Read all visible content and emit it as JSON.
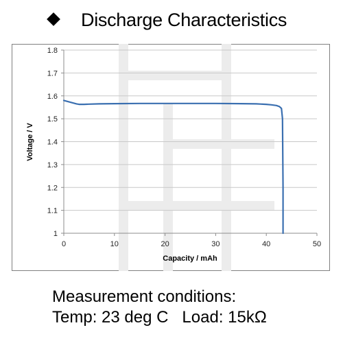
{
  "heading": {
    "bullet_icon": "diamond-bullet-icon",
    "title": "Discharge Characteristics"
  },
  "chart_data": {
    "type": "line",
    "title": "",
    "xlabel": "Capacity  /  mAh",
    "ylabel": "Voltage  /  V",
    "xlim": [
      0,
      50
    ],
    "ylim": [
      1,
      1.8
    ],
    "xticks": [
      0,
      10,
      20,
      30,
      40,
      50
    ],
    "yticks": [
      1,
      1.1,
      1.2,
      1.3,
      1.4,
      1.5,
      1.6,
      1.7,
      1.8
    ],
    "ytick_labels": [
      "1",
      "1.1",
      "1.2",
      "1.3",
      "1.4",
      "1.5",
      "1.6",
      "1.7",
      "1.8"
    ],
    "grid": "horizontal",
    "line_color": "#3a6fb0",
    "series": [
      {
        "x": [
          0,
          0.5,
          1,
          1.5,
          2,
          2.5,
          3,
          4,
          5,
          7,
          10,
          15,
          20,
          25,
          30,
          35,
          38,
          40,
          41,
          42,
          42.6,
          43,
          43.2,
          43.3,
          43.3
        ],
        "values": [
          1.58,
          1.577,
          1.574,
          1.571,
          1.568,
          1.565,
          1.563,
          1.563,
          1.564,
          1.565,
          1.566,
          1.567,
          1.567,
          1.567,
          1.567,
          1.566,
          1.565,
          1.563,
          1.561,
          1.558,
          1.553,
          1.545,
          1.5,
          1.2,
          1.0
        ]
      }
    ]
  },
  "conditions": {
    "line1": "Measurement conditions:",
    "line2": "Temp: 23 deg C   Load: 15kΩ"
  }
}
